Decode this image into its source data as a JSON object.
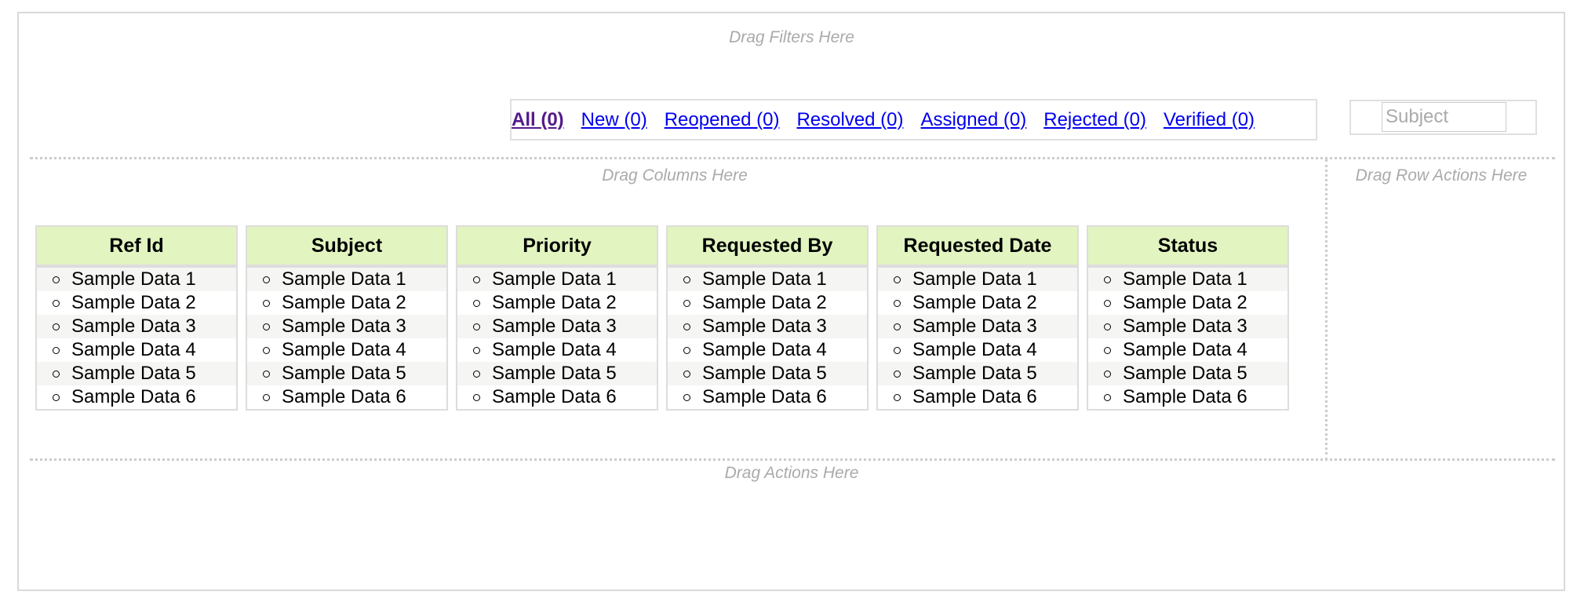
{
  "zones": {
    "filters": "Drag Filters Here",
    "columns": "Drag Columns Here",
    "row_actions": "Drag Row Actions Here",
    "actions": "Drag Actions Here"
  },
  "filter_tabs": [
    {
      "label": "All (0)",
      "active": true
    },
    {
      "label": "New (0)"
    },
    {
      "label": "Reopened (0)"
    },
    {
      "label": "Resolved (0)"
    },
    {
      "label": "Assigned (0)"
    },
    {
      "label": "Rejected (0)"
    },
    {
      "label": "Verified (0)"
    }
  ],
  "search": {
    "placeholder": "Subject",
    "value": ""
  },
  "colors": {
    "header_bg": "#e2f4c0",
    "link": "#0000ee",
    "active_link": "#551a8b"
  },
  "columns": [
    {
      "header": "Ref Id",
      "rows": [
        "Sample Data 1",
        "Sample Data 2",
        "Sample Data 3",
        "Sample Data 4",
        "Sample Data 5",
        "Sample Data 6"
      ]
    },
    {
      "header": "Subject",
      "rows": [
        "Sample Data 1",
        "Sample Data 2",
        "Sample Data 3",
        "Sample Data 4",
        "Sample Data 5",
        "Sample Data 6"
      ]
    },
    {
      "header": "Priority",
      "rows": [
        "Sample Data 1",
        "Sample Data 2",
        "Sample Data 3",
        "Sample Data 4",
        "Sample Data 5",
        "Sample Data 6"
      ]
    },
    {
      "header": "Requested By",
      "rows": [
        "Sample Data 1",
        "Sample Data 2",
        "Sample Data 3",
        "Sample Data 4",
        "Sample Data 5",
        "Sample Data 6"
      ]
    },
    {
      "header": "Requested Date",
      "rows": [
        "Sample Data 1",
        "Sample Data 2",
        "Sample Data 3",
        "Sample Data 4",
        "Sample Data 5",
        "Sample Data 6"
      ]
    },
    {
      "header": "Status",
      "rows": [
        "Sample Data 1",
        "Sample Data 2",
        "Sample Data 3",
        "Sample Data 4",
        "Sample Data 5",
        "Sample Data 6"
      ]
    }
  ]
}
